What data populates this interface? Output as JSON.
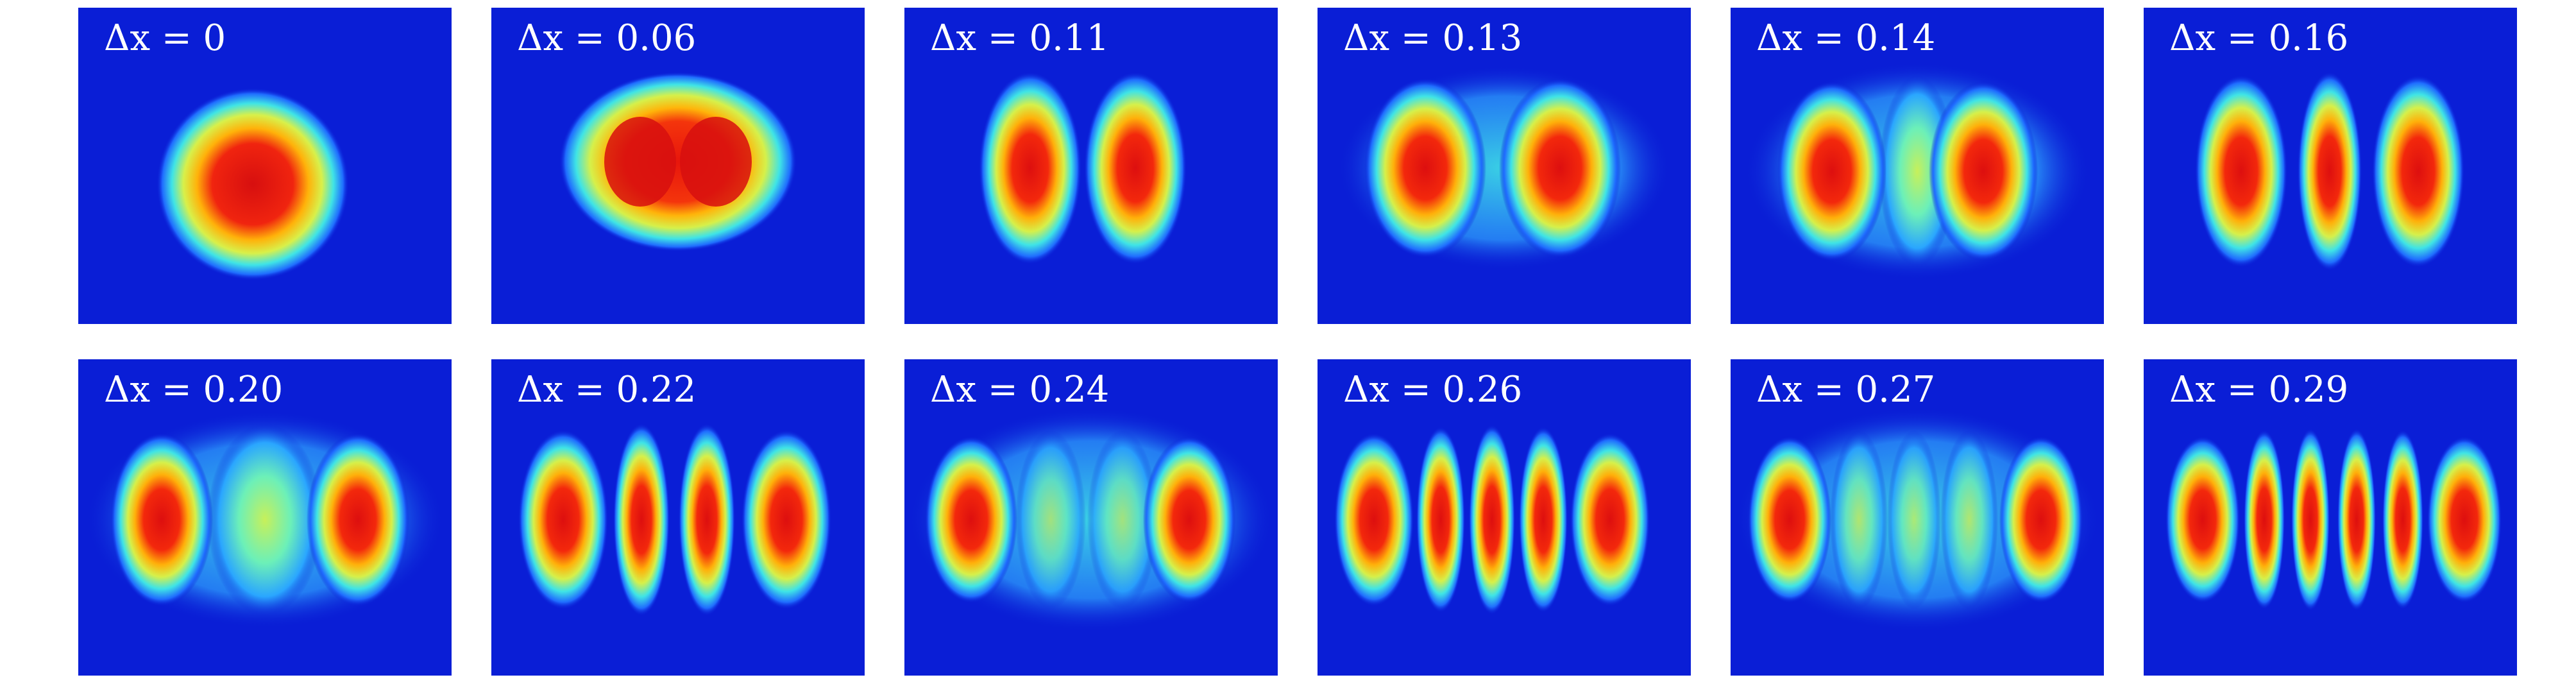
{
  "figure": {
    "panels": [
      {
        "label": "Δx = 0",
        "delta_x": "0",
        "fringes": 1
      },
      {
        "label": "Δx = 0.06",
        "delta_x": "0.06",
        "fringes": 2
      },
      {
        "label": "Δx = 0.11",
        "delta_x": "0.11",
        "fringes": 2
      },
      {
        "label": "Δx = 0.13",
        "delta_x": "0.13",
        "fringes": 2
      },
      {
        "label": "Δx = 0.14",
        "delta_x": "0.14",
        "fringes": 3
      },
      {
        "label": "Δx = 0.16",
        "delta_x": "0.16",
        "fringes": 3
      },
      {
        "label": "Δx = 0.20",
        "delta_x": "0.20",
        "fringes": 3
      },
      {
        "label": "Δx = 0.22",
        "delta_x": "0.22",
        "fringes": 4
      },
      {
        "label": "Δx = 0.24",
        "delta_x": "0.24",
        "fringes": 4
      },
      {
        "label": "Δx = 0.26",
        "delta_x": "0.26",
        "fringes": 5
      },
      {
        "label": "Δx = 0.27",
        "delta_x": "0.27",
        "fringes": 5
      },
      {
        "label": "Δx = 0.29",
        "delta_x": "0.29",
        "fringes": 6
      }
    ],
    "colormap": "jet",
    "colors": {
      "background": "#0a1ed6",
      "low": "#1a4bff",
      "mid": "#3fe8e0",
      "high": "#ffe22a",
      "peak": "#e0150a"
    }
  }
}
